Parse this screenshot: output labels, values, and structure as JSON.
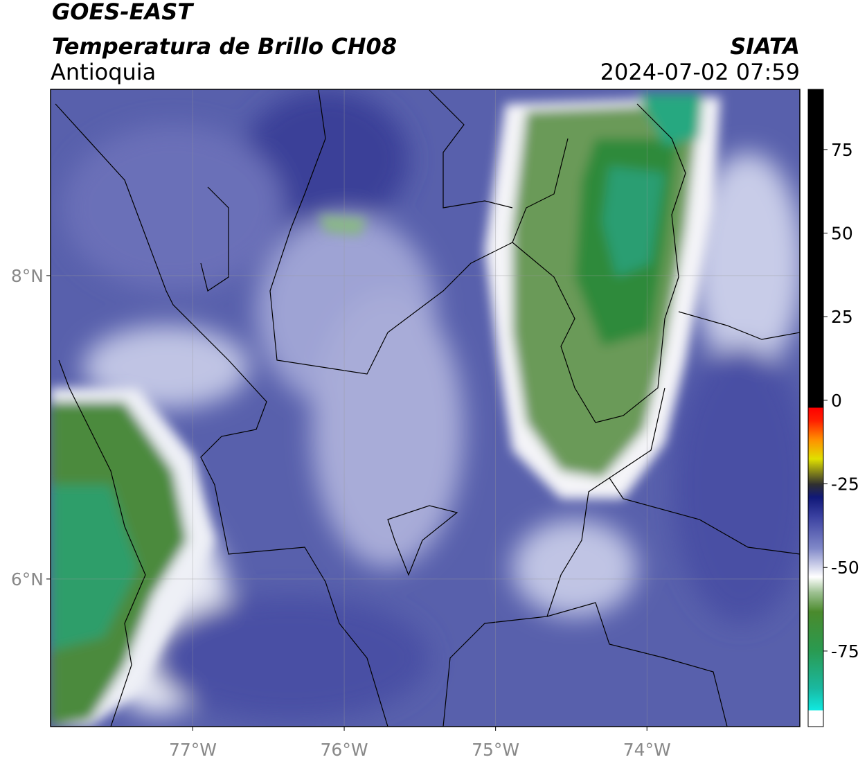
{
  "header": {
    "satellite": "GOES-EAST",
    "product": "Temperatura de Brillo CH08",
    "region": "Antioquia",
    "source": "SIATA",
    "datetime": "2024-07-02 07:59"
  },
  "map": {
    "xlim": [
      -77.94,
      -72.99
    ],
    "ylim": [
      5.027,
      9.228
    ],
    "xticks": [
      {
        "value": -77,
        "label": "77°W"
      },
      {
        "value": -76,
        "label": "76°W"
      },
      {
        "value": -75,
        "label": "75°W"
      },
      {
        "value": -74,
        "label": "74°W"
      }
    ],
    "yticks": [
      {
        "value": 6,
        "label": "6°N"
      },
      {
        "value": 8,
        "label": "8°N"
      }
    ],
    "grid": true
  },
  "colorbar": {
    "clim": [
      -97.6,
      93
    ],
    "ticks": [
      -75,
      -50,
      -25,
      0,
      25,
      50,
      75
    ]
  }
}
